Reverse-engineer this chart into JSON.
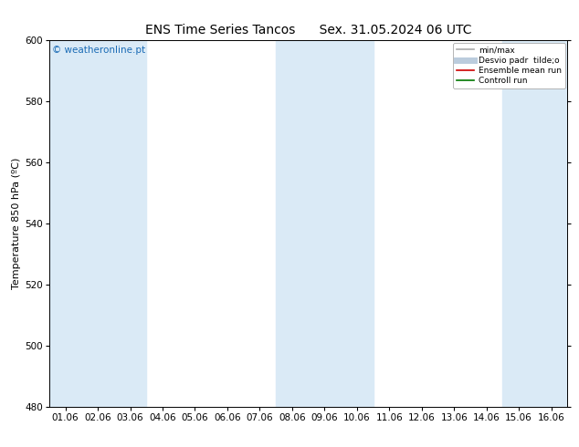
{
  "title": "ENS Time Series Tancos",
  "subtitle": "Sex. 31.05.2024 06 UTC",
  "ylabel": "Temperature 850 hPa (ºC)",
  "ylim": [
    480,
    600
  ],
  "yticks": [
    480,
    500,
    520,
    540,
    560,
    580,
    600
  ],
  "x_labels": [
    "01.06",
    "02.06",
    "03.06",
    "04.06",
    "05.06",
    "06.06",
    "07.06",
    "08.06",
    "09.06",
    "10.06",
    "11.06",
    "12.06",
    "13.06",
    "14.06",
    "15.06",
    "16.06"
  ],
  "shaded_indices": [
    0,
    1,
    2,
    7,
    8,
    9,
    14,
    15
  ],
  "shade_color": "#daeaf6",
  "bg_color": "#ffffff",
  "watermark": "© weatheronline.pt",
  "watermark_color": "#1a6bb5",
  "legend_items": [
    {
      "label": "min/max",
      "color": "#aaaaaa",
      "lw": 1.2,
      "style": "-"
    },
    {
      "label": "Desvio padr  tilde;o",
      "color": "#bbccdd",
      "lw": 5,
      "style": "-"
    },
    {
      "label": "Ensemble mean run",
      "color": "#cc0000",
      "lw": 1.2,
      "style": "-"
    },
    {
      "label": "Controll run",
      "color": "#007700",
      "lw": 1.2,
      "style": "-"
    }
  ],
  "title_fontsize": 10,
  "axis_fontsize": 8,
  "tick_fontsize": 7.5
}
